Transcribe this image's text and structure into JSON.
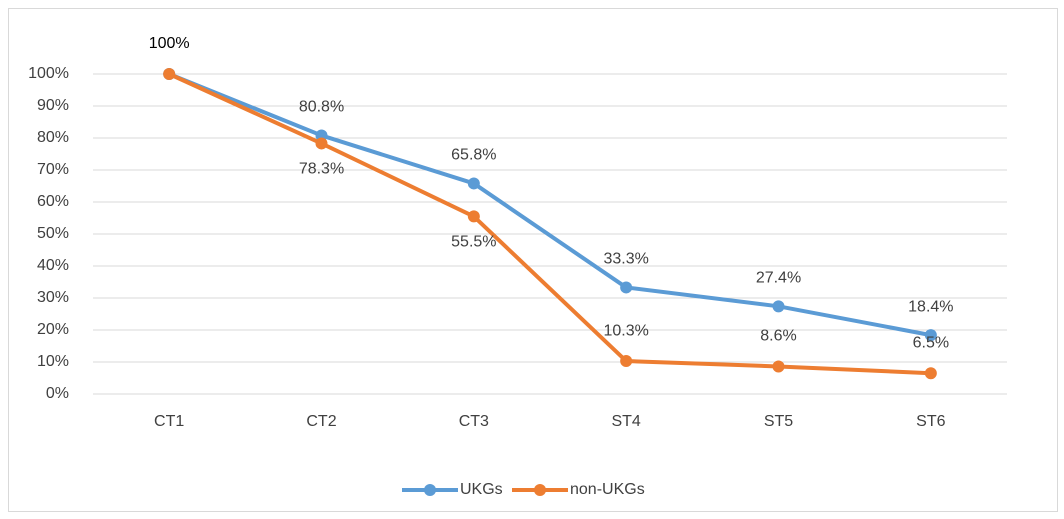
{
  "chart_data": {
    "type": "line",
    "categories": [
      "CT1",
      "CT2",
      "CT3",
      "ST4",
      "ST5",
      "ST6"
    ],
    "series": [
      {
        "name": "UKGs",
        "color": "#5b9bd5",
        "values": [
          100,
          80.8,
          65.8,
          33.3,
          27.4,
          18.4
        ],
        "value_labels": [
          "100%",
          "80.8%",
          "65.8%",
          "33.3%",
          "27.4%",
          "18.4%"
        ]
      },
      {
        "name": "non-UKGs",
        "color": "#ed7d31",
        "values": [
          100,
          78.3,
          55.5,
          10.3,
          8.6,
          6.5
        ],
        "value_labels": [
          null,
          "78.3%",
          "55.5%",
          "10.3%",
          "8.6%",
          "6.5%"
        ]
      }
    ],
    "ylim": [
      0,
      100
    ],
    "yticks": [
      {
        "value": 0,
        "label": "0%"
      },
      {
        "value": 10,
        "label": "10%"
      },
      {
        "value": 20,
        "label": "20%"
      },
      {
        "value": 30,
        "label": "30%"
      },
      {
        "value": 40,
        "label": "40%"
      },
      {
        "value": 50,
        "label": "50%"
      },
      {
        "value": 60,
        "label": "60%"
      },
      {
        "value": 70,
        "label": "70%"
      },
      {
        "value": 80,
        "label": "80%"
      },
      {
        "value": 90,
        "label": "90%"
      },
      {
        "value": 100,
        "label": "100%"
      }
    ],
    "grid": true,
    "legend": "bottom"
  }
}
